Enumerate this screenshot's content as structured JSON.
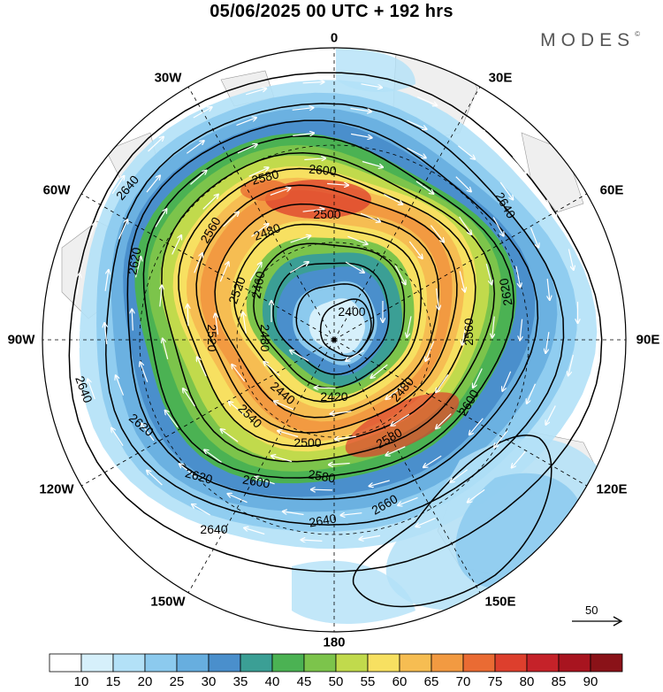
{
  "title": "05/06/2025  00 UTC  + 192 hrs",
  "brand": "MODES",
  "brand_mark": "©",
  "longitude_labels": [
    "0",
    "30E",
    "60E",
    "90E",
    "120E",
    "150E",
    "180",
    "150W",
    "120W",
    "90W",
    "60W",
    "30W"
  ],
  "contour_labels": [
    "2400",
    "2420",
    "2440",
    "2460",
    "2480",
    "2500",
    "2520",
    "2540",
    "2560",
    "2580",
    "2600",
    "2620",
    "2640",
    "2660"
  ],
  "reference_vector": {
    "value": "50",
    "icon": "right-arrow-icon"
  },
  "colorbar": {
    "ticks": [
      "10",
      "15",
      "20",
      "25",
      "30",
      "35",
      "40",
      "45",
      "50",
      "55",
      "60",
      "65",
      "70",
      "75",
      "80",
      "85",
      "90"
    ],
    "colors": [
      "#ffffff",
      "#d6f0fb",
      "#b3e1f7",
      "#8ccaee",
      "#67aedf",
      "#4a8fcc",
      "#3b9f95",
      "#4bb253",
      "#7cc44b",
      "#c1da4c",
      "#f7e061",
      "#f6bd52",
      "#f29a41",
      "#ea6b33",
      "#dd3f2d",
      "#c52229",
      "#a8141f",
      "#8a1218"
    ]
  },
  "colors": {
    "land": "#efefef",
    "contour": "#000000",
    "wind_arrow": "#ffffff",
    "graticule": "#000000"
  }
}
